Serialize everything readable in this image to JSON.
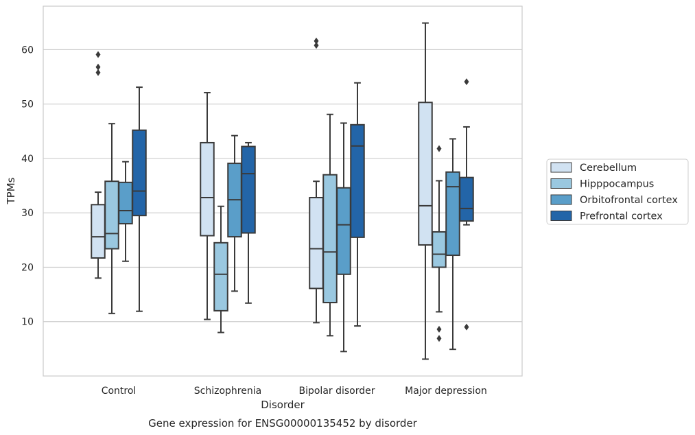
{
  "chart_data": {
    "type": "box",
    "title": "Gene expression for ENSG00000135452 by disorder",
    "xlabel": "Disorder",
    "ylabel": "TPMs",
    "ylim": [
      0,
      68
    ],
    "yticks": [
      10,
      20,
      30,
      40,
      50,
      60
    ],
    "grid": "horizontal",
    "legend_position": "right",
    "categories": [
      "Control",
      "Schizophrenia",
      "Bipolar disorder",
      "Major depression"
    ],
    "series": [
      {
        "name": "Cerebellum",
        "color": "#d1e2f2",
        "boxes": [
          {
            "whislo": 18.0,
            "q1": 21.7,
            "med": 25.6,
            "q3": 31.5,
            "whishi": 33.8,
            "fliers": [
              55.8,
              56.8,
              59.1
            ]
          },
          {
            "whislo": 10.4,
            "q1": 25.8,
            "med": 32.8,
            "q3": 42.9,
            "whishi": 52.1,
            "fliers": []
          },
          {
            "whislo": 9.8,
            "q1": 16.1,
            "med": 23.4,
            "q3": 32.8,
            "whishi": 35.8,
            "fliers": [
              60.8,
              61.6
            ]
          },
          {
            "whislo": 3.1,
            "q1": 24.1,
            "med": 31.3,
            "q3": 50.3,
            "whishi": 64.9,
            "fliers": []
          }
        ]
      },
      {
        "name": "Hipppocampus",
        "color": "#9ac8e0",
        "boxes": [
          {
            "whislo": 11.5,
            "q1": 23.4,
            "med": 26.2,
            "q3": 35.8,
            "whishi": 46.4,
            "fliers": []
          },
          {
            "whislo": 8.0,
            "q1": 12.0,
            "med": 18.7,
            "q3": 24.5,
            "whishi": 31.2,
            "fliers": []
          },
          {
            "whislo": 7.4,
            "q1": 13.5,
            "med": 22.8,
            "q3": 37.0,
            "whishi": 48.1,
            "fliers": []
          },
          {
            "whislo": 11.8,
            "q1": 20.0,
            "med": 22.4,
            "q3": 26.5,
            "whishi": 35.9,
            "fliers": [
              6.9,
              8.6,
              41.8
            ]
          }
        ]
      },
      {
        "name": "Orbitofrontal cortex",
        "color": "#5a9ec9",
        "boxes": [
          {
            "whislo": 21.1,
            "q1": 28.0,
            "med": 30.4,
            "q3": 35.6,
            "whishi": 39.4,
            "fliers": []
          },
          {
            "whislo": 15.6,
            "q1": 25.6,
            "med": 32.4,
            "q3": 39.1,
            "whishi": 44.2,
            "fliers": []
          },
          {
            "whislo": 4.5,
            "q1": 18.7,
            "med": 27.8,
            "q3": 34.6,
            "whishi": 46.5,
            "fliers": []
          },
          {
            "whislo": 4.9,
            "q1": 22.2,
            "med": 34.8,
            "q3": 37.5,
            "whishi": 43.6,
            "fliers": []
          }
        ]
      },
      {
        "name": "Prefrontal cortex",
        "color": "#2365a8",
        "boxes": [
          {
            "whislo": 11.9,
            "q1": 29.5,
            "med": 34.0,
            "q3": 45.2,
            "whishi": 53.1,
            "fliers": []
          },
          {
            "whislo": 13.4,
            "q1": 26.3,
            "med": 37.2,
            "q3": 42.2,
            "whishi": 42.9,
            "fliers": []
          },
          {
            "whislo": 9.2,
            "q1": 25.5,
            "med": 42.3,
            "q3": 46.2,
            "whishi": 53.9,
            "fliers": []
          },
          {
            "whislo": 27.8,
            "q1": 28.5,
            "med": 30.8,
            "q3": 36.5,
            "whishi": 45.8,
            "fliers": [
              9.0,
              54.1
            ]
          }
        ]
      }
    ]
  }
}
